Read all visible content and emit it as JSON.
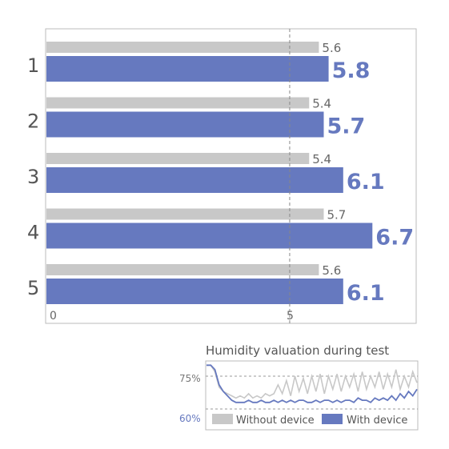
{
  "colors": {
    "series_a": "#c8c8c8",
    "series_b": "#6679bf",
    "frame": "#bbbbbb",
    "refline": "#888888"
  },
  "chart_data": [
    {
      "type": "bar",
      "orientation": "horizontal",
      "categories": [
        "1",
        "2",
        "3",
        "4",
        "5"
      ],
      "series": [
        {
          "values": [
            5.6,
            5.4,
            5.4,
            5.7,
            5.6
          ]
        },
        {
          "values": [
            5.8,
            5.7,
            6.1,
            6.7,
            6.1
          ]
        }
      ],
      "xticks": [
        "0",
        "5"
      ],
      "xlim": [
        0,
        7.6
      ],
      "reference_line": 5,
      "grid": false,
      "value_labels": {
        "a": [
          "5.6",
          "5.4",
          "5.4",
          "5.7",
          "5.6"
        ],
        "b": [
          "5.8",
          "5.7",
          "6.1",
          "6.7",
          "6.1"
        ]
      }
    },
    {
      "type": "line",
      "title": "Humidity valuation during test",
      "yticks": [
        "75%",
        "60%"
      ],
      "ylim": [
        57,
        82
      ],
      "legend": "bottom",
      "series": [
        {
          "name": "Without device",
          "values": [
            80,
            80,
            77,
            70,
            68,
            67,
            66,
            65,
            66,
            65,
            67,
            65,
            66,
            65,
            67,
            66,
            67,
            71,
            67,
            73,
            66,
            75,
            68,
            74,
            67,
            75,
            68,
            76,
            67,
            75,
            69,
            76,
            68,
            75,
            70,
            76,
            68,
            77,
            69,
            75,
            70,
            77,
            69,
            76,
            70,
            78,
            69,
            75,
            70,
            77,
            72
          ]
        },
        {
          "name": "With device",
          "values": [
            80,
            80,
            78,
            71,
            68,
            66,
            64,
            63,
            63,
            63,
            64,
            63,
            63,
            64,
            63,
            63,
            64,
            63,
            64,
            63,
            64,
            63,
            64,
            64,
            63,
            63,
            64,
            63,
            64,
            64,
            63,
            64,
            63,
            64,
            64,
            63,
            65,
            64,
            64,
            63,
            65,
            64,
            65,
            64,
            66,
            64,
            67,
            65,
            68,
            66,
            69
          ]
        }
      ]
    }
  ]
}
